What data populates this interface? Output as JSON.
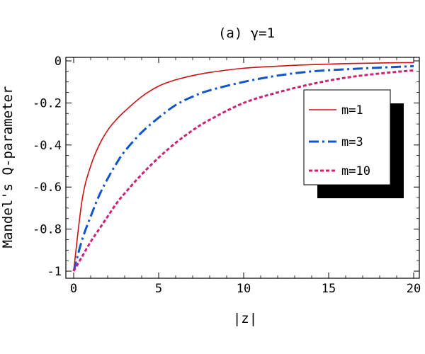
{
  "chart_data": {
    "type": "line",
    "title": "(a) γ=1",
    "xlabel": "|z|",
    "ylabel": "Mandel's Q-parameter",
    "xlim": [
      0,
      20
    ],
    "ylim": [
      -1,
      0
    ],
    "x_ticks": [
      0,
      5,
      10,
      15,
      20
    ],
    "x_tick_labels": [
      "0",
      "5",
      "10",
      "15",
      "20"
    ],
    "y_ticks": [
      0,
      -0.2,
      -0.4,
      -0.6,
      -0.8,
      -1
    ],
    "y_tick_labels": [
      "0",
      "-0.2",
      "-0.4",
      "-0.6",
      "-0.8",
      "-1"
    ],
    "grid": false,
    "legend": {
      "placement": "upper-right",
      "shadow": true
    },
    "series": [
      {
        "name": "m=1",
        "color": "#cc1111",
        "style": "solid",
        "x": [
          0,
          0.5,
          1,
          1.5,
          2,
          2.5,
          3,
          4,
          5,
          6,
          7,
          8,
          10,
          12,
          14,
          16,
          18,
          20
        ],
        "values": [
          -1,
          -0.66,
          -0.5,
          -0.4,
          -0.33,
          -0.28,
          -0.24,
          -0.17,
          -0.12,
          -0.09,
          -0.07,
          -0.055,
          -0.035,
          -0.025,
          -0.018,
          -0.013,
          -0.01,
          -0.008
        ]
      },
      {
        "name": "m=3",
        "color": "#1155cc",
        "style": "dashdot",
        "x": [
          0,
          0.5,
          1,
          1.5,
          2,
          2.5,
          3,
          4,
          5,
          6,
          7,
          8,
          10,
          12,
          14,
          16,
          18,
          20
        ],
        "values": [
          -1,
          -0.85,
          -0.74,
          -0.64,
          -0.56,
          -0.49,
          -0.43,
          -0.34,
          -0.27,
          -0.21,
          -0.17,
          -0.14,
          -0.1,
          -0.07,
          -0.05,
          -0.04,
          -0.032,
          -0.025
        ]
      },
      {
        "name": "m=10",
        "color": "#cc2277",
        "style": "dashed",
        "x": [
          0,
          0.5,
          1,
          1.5,
          2,
          2.5,
          3,
          4,
          5,
          6,
          7,
          8,
          10,
          12,
          14,
          16,
          18,
          20
        ],
        "values": [
          -1,
          -0.93,
          -0.86,
          -0.8,
          -0.74,
          -0.68,
          -0.63,
          -0.54,
          -0.46,
          -0.39,
          -0.33,
          -0.28,
          -0.2,
          -0.15,
          -0.11,
          -0.08,
          -0.06,
          -0.045
        ]
      }
    ]
  }
}
